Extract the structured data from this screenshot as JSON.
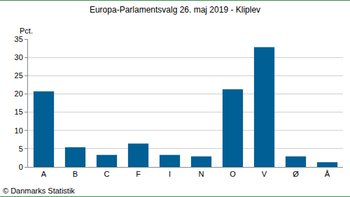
{
  "chart_data": {
    "type": "bar",
    "title": "Europa-Parlamentsvalg 26. maj 2019 - Kliplev",
    "ylabel": "Pct.",
    "annotations": [
      "© Danmarks Statistik"
    ],
    "categories": [
      "A",
      "B",
      "C",
      "F",
      "I",
      "N",
      "O",
      "V",
      "Ø",
      "Å"
    ],
    "values": [
      20.7,
      5.4,
      3.3,
      6.4,
      3.3,
      2.9,
      21.3,
      32.8,
      2.9,
      1.3
    ],
    "color": "#005f94",
    "ylim": [
      0,
      35
    ],
    "yticks": [
      0,
      5,
      10,
      15,
      20,
      25,
      30,
      35
    ],
    "grid": true
  }
}
